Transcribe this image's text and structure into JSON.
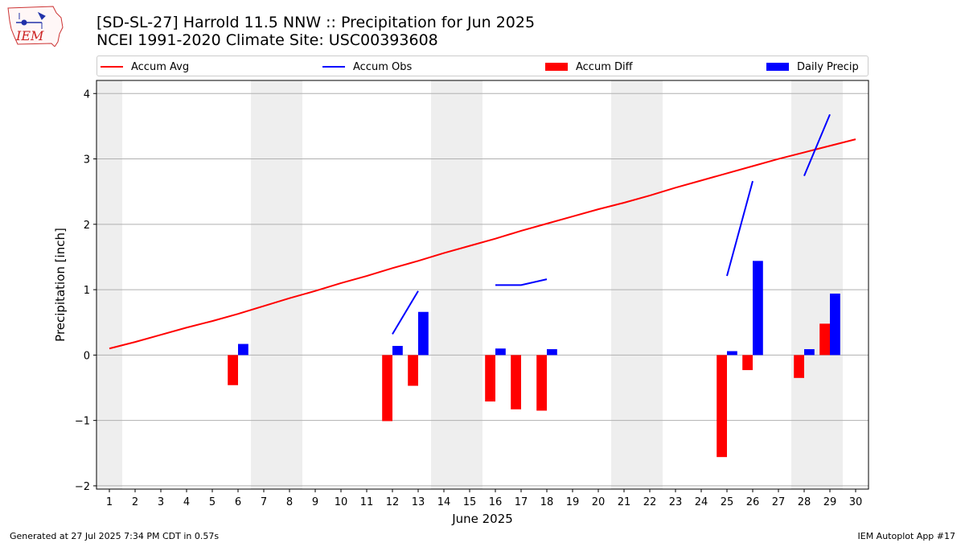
{
  "logo": {
    "text": "IEM",
    "icon": "iem-iowa-logo"
  },
  "title_line1": "[SD-SL-27] Harrold 11.5 NNW :: Precipitation for Jun 2025",
  "title_line2": "NCEI 1991-2020 Climate Site: USC00393608",
  "legend": [
    {
      "label": "Accum Avg",
      "kind": "line",
      "color": "#ff0000"
    },
    {
      "label": "Accum Obs",
      "kind": "line",
      "color": "#0000ff"
    },
    {
      "label": "Accum Diff",
      "kind": "box",
      "color": "#ff0000"
    },
    {
      "label": "Daily Precip",
      "kind": "box",
      "color": "#0000ff"
    }
  ],
  "footer_left": "Generated at 27 Jul 2025 7:34 PM CDT in 0.57s",
  "footer_right": "IEM Autoplot App #17",
  "chart_data": {
    "type": "bar",
    "xlabel": "June 2025",
    "ylabel": "Precipitation [inch]",
    "xlim": [
      0.5,
      30.5
    ],
    "ylim": [
      -2.05,
      4.2
    ],
    "yticks": [
      -2,
      -1,
      0,
      1,
      2,
      3,
      4
    ],
    "ytick_labels": [
      "−2",
      "−1",
      "0",
      "1",
      "2",
      "3",
      "4"
    ],
    "x": [
      1,
      2,
      3,
      4,
      5,
      6,
      7,
      8,
      9,
      10,
      11,
      12,
      13,
      14,
      15,
      16,
      17,
      18,
      19,
      20,
      21,
      22,
      23,
      24,
      25,
      26,
      27,
      28,
      29,
      30
    ],
    "grid": "horizontal",
    "weekend_shading": [
      [
        0.5,
        1.5
      ],
      [
        6.5,
        8.5
      ],
      [
        13.5,
        15.5
      ],
      [
        20.5,
        22.5
      ],
      [
        27.5,
        29.5
      ]
    ],
    "series": [
      {
        "name": "Accum Avg",
        "type": "line",
        "color": "#ff0000",
        "values": [
          0.1,
          0.2,
          0.31,
          0.42,
          0.52,
          0.63,
          0.75,
          0.87,
          0.98,
          1.1,
          1.21,
          1.33,
          1.44,
          1.56,
          1.67,
          1.78,
          1.9,
          2.01,
          2.12,
          2.23,
          2.33,
          2.44,
          2.56,
          2.67,
          2.78,
          2.89,
          3.0,
          3.1,
          3.2,
          3.3
        ]
      },
      {
        "name": "Accum Obs",
        "type": "line",
        "color": "#0000ff",
        "segments": [
          [
            [
              12,
              0.32
            ],
            [
              13,
              0.98
            ]
          ],
          [
            [
              16,
              1.07
            ],
            [
              17,
              1.07
            ],
            [
              18,
              1.16
            ]
          ],
          [
            [
              25,
              1.21
            ],
            [
              26,
              2.66
            ]
          ],
          [
            [
              28,
              2.74
            ],
            [
              29,
              3.68
            ]
          ]
        ]
      },
      {
        "name": "Accum Diff",
        "type": "bar",
        "color": "#ff0000",
        "points": [
          [
            6,
            -0.46
          ],
          [
            12,
            -1.01
          ],
          [
            13,
            -0.47
          ],
          [
            16,
            -0.71
          ],
          [
            17,
            -0.83
          ],
          [
            18,
            -0.85
          ],
          [
            25,
            -1.56
          ],
          [
            26,
            -0.23
          ],
          [
            28,
            -0.35
          ],
          [
            29,
            0.48
          ]
        ]
      },
      {
        "name": "Daily Precip",
        "type": "bar",
        "color": "#0000ff",
        "points": [
          [
            6,
            0.17
          ],
          [
            12,
            0.14
          ],
          [
            13,
            0.66
          ],
          [
            16,
            0.1
          ],
          [
            18,
            0.09
          ],
          [
            25,
            0.06
          ],
          [
            26,
            1.44
          ],
          [
            28,
            0.09
          ],
          [
            29,
            0.94
          ]
        ]
      }
    ]
  }
}
